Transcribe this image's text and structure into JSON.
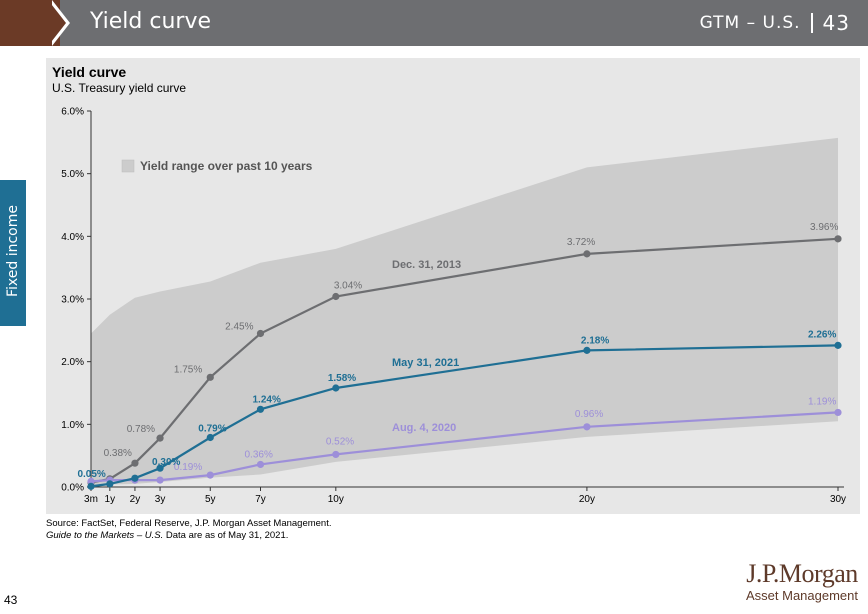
{
  "header": {
    "title": "Yield curve",
    "section": "GTM – U.S.",
    "page_number": "43"
  },
  "side_tab": "Fixed income",
  "page_footer_number": "43",
  "logo": {
    "main": "J.P.Morgan",
    "sub": "Asset Management"
  },
  "footnote": {
    "line1": "Source: FactSet, Federal Reserve, J.P. Morgan Asset Management.",
    "line2_italic": "Guide to the Markets – U.S.",
    "line2_rest": " Data are as of May 31, 2021."
  },
  "colors": {
    "range_fill": "#cccccc",
    "dec2013": "#6d6e71",
    "may2021": "#1f6f94",
    "aug2020": "#9d8fd9",
    "panel": "#e7e7e7"
  },
  "chart_data": {
    "type": "line",
    "title": "Yield curve",
    "subtitle": "U.S. Treasury yield curve",
    "x_labels": [
      "3m",
      "1y",
      "2y",
      "3y",
      "5y",
      "7y",
      "10y",
      "20y",
      "30y"
    ],
    "x": [
      0.25,
      1,
      2,
      3,
      5,
      7,
      10,
      20,
      30
    ],
    "ylim": [
      0,
      6
    ],
    "y_ticks": [
      "0.0%",
      "1.0%",
      "2.0%",
      "3.0%",
      "4.0%",
      "5.0%",
      "6.0%"
    ],
    "range": {
      "name": "Yield range over past 10 years",
      "upper": [
        2.45,
        2.75,
        3.02,
        3.12,
        3.28,
        3.58,
        3.8,
        5.1,
        5.57
      ],
      "lower": [
        0.02,
        0.04,
        0.05,
        0.08,
        0.15,
        0.2,
        0.4,
        0.8,
        1.05
      ]
    },
    "series": [
      {
        "name": "Dec. 31, 2013",
        "values": [
          0.07,
          0.13,
          0.38,
          0.78,
          1.75,
          2.45,
          3.04,
          3.72,
          3.96
        ],
        "labels": [
          "",
          "",
          "0.38%",
          "0.78%",
          "1.75%",
          "2.45%",
          "3.04%",
          "3.72%",
          "3.96%"
        ]
      },
      {
        "name": "May 31, 2021",
        "values": [
          0.01,
          0.05,
          0.14,
          0.3,
          0.79,
          1.24,
          1.58,
          2.18,
          2.26
        ],
        "labels": [
          "",
          "0.05%",
          "",
          "0.30%",
          "0.79%",
          "1.24%",
          "1.58%",
          "2.18%",
          "2.26%"
        ]
      },
      {
        "name": "Aug. 4, 2020",
        "values": [
          0.09,
          0.11,
          0.11,
          0.11,
          0.19,
          0.36,
          0.52,
          0.96,
          1.19
        ],
        "labels": [
          "",
          "",
          "",
          "",
          "0.19%",
          "0.36%",
          "0.52%",
          "0.96%",
          "1.19%"
        ]
      }
    ]
  }
}
